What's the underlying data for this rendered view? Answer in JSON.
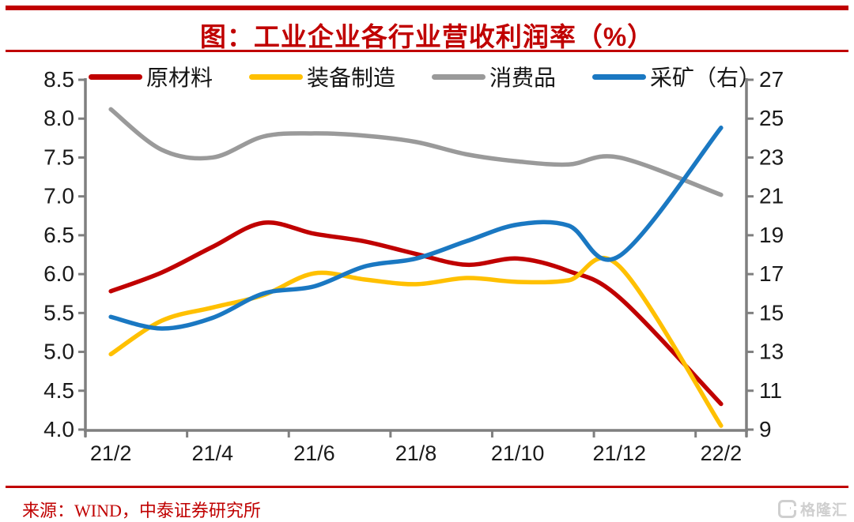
{
  "page": {
    "title": "图：工业企业各行业营收利润率（%）",
    "source": "来源：WIND，中泰证券研究所",
    "watermark": "格隆汇",
    "accent_color": "#C00000"
  },
  "chart_data": {
    "type": "line",
    "title": "图：工业企业各行业营收利润率（%）",
    "grid": false,
    "legend_position": "top",
    "x": {
      "categories": [
        "21/2",
        "21/3",
        "21/4",
        "21/5",
        "21/6",
        "21/7",
        "21/8",
        "21/9",
        "21/10",
        "21/11",
        "21/12",
        "22/2"
      ],
      "month_slot": [
        0,
        1,
        2,
        3,
        4,
        5,
        6,
        7,
        8,
        9,
        10,
        12
      ],
      "axis_tick_labels": [
        "21/2",
        "21/4",
        "21/6",
        "21/8",
        "21/10",
        "21/12",
        "22/2"
      ],
      "axis_tick_slots": [
        0,
        2,
        4,
        6,
        8,
        10,
        12
      ],
      "boundary_tick_slots": [
        0,
        2,
        4,
        6,
        8,
        10,
        12,
        13
      ]
    },
    "left_axis": {
      "min": 4.0,
      "max": 8.5,
      "step": 0.5,
      "tick_labels": [
        "8.5",
        "8.0",
        "7.5",
        "7.0",
        "6.5",
        "6.0",
        "5.5",
        "5.0",
        "4.5",
        "4.0"
      ]
    },
    "right_axis": {
      "min": 9,
      "max": 27,
      "step": 2,
      "tick_labels": [
        "27",
        "25",
        "23",
        "21",
        "19",
        "17",
        "15",
        "13",
        "11",
        "9"
      ]
    },
    "axis_color": "#7F7F7F",
    "tick_text_color": "#1A1A1A",
    "series": [
      {
        "id": "raw-materials",
        "name": "原材料",
        "axis": "left",
        "color": "#C00000",
        "values": [
          5.78,
          6.02,
          6.35,
          6.66,
          6.52,
          6.42,
          6.26,
          6.12,
          6.2,
          6.04,
          5.7,
          4.33
        ]
      },
      {
        "id": "equipment-manufacturing",
        "name": "装备制造",
        "axis": "left",
        "color": "#FFC000",
        "values": [
          4.97,
          5.4,
          5.57,
          5.73,
          6.01,
          5.93,
          5.87,
          5.95,
          5.9,
          5.92,
          6.1,
          4.05
        ]
      },
      {
        "id": "consumer-goods",
        "name": "消费品",
        "axis": "left",
        "color": "#9A9A9A",
        "values": [
          8.12,
          7.6,
          7.5,
          7.77,
          7.81,
          7.78,
          7.7,
          7.54,
          7.45,
          7.41,
          7.5,
          7.02
        ]
      },
      {
        "id": "mining",
        "name": "采矿（右）",
        "axis": "right",
        "color": "#1A78C2",
        "values": [
          14.8,
          14.2,
          14.75,
          16.0,
          16.37,
          17.4,
          17.8,
          18.7,
          19.55,
          19.5,
          17.93,
          24.53
        ]
      }
    ]
  }
}
